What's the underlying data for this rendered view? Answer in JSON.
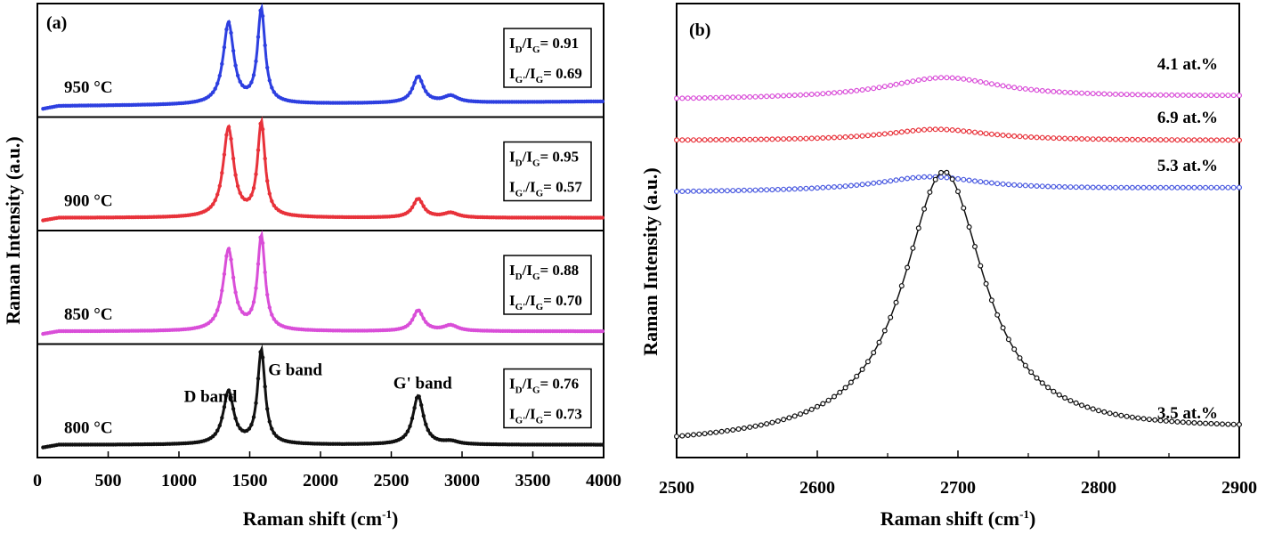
{
  "chart_data": [
    {
      "type": "line",
      "panel_label": "(a)",
      "xlabel": "Raman shift (cm",
      "xlabel_sup": "-1",
      "xlabel_close": ")",
      "ylabel": "Raman Intensity (a.u.)",
      "xlim": [
        0,
        4000
      ],
      "x_ticks": [
        "0",
        "500",
        "1000",
        "1500",
        "2000",
        "2500",
        "3000",
        "3500",
        "4000"
      ],
      "x_tick_values": [
        0,
        500,
        1000,
        1500,
        2000,
        2500,
        3000,
        3500,
        4000
      ],
      "band_labels": [
        {
          "text": "D band",
          "x": 1350
        },
        {
          "text": "G band",
          "x": 1580
        },
        {
          "text": "G' band",
          "x": 2690
        }
      ],
      "series": [
        {
          "name": "950 °C",
          "color": "#2d3fe0",
          "ratio_lines": [
            {
              "num": "I",
              "num_sub": "D",
              "den": "I",
              "den_sub": "G",
              "value": "0.91"
            },
            {
              "num": "I",
              "num_sub": "G'",
              "den": "I",
              "den_sub": "G",
              "value": "0.69"
            }
          ],
          "peaks": [
            [
              0,
              0.0
            ],
            [
              150,
              0.06
            ],
            [
              1000,
              0.08
            ],
            [
              1350,
              0.86
            ],
            [
              1450,
              0.2
            ],
            [
              1580,
              1.0
            ],
            [
              1700,
              0.05
            ],
            [
              2690,
              0.28
            ],
            [
              2900,
              0.14
            ],
            [
              4000,
              0.1
            ]
          ]
        },
        {
          "name": "900 °C",
          "color": "#e8323a",
          "ratio_lines": [
            {
              "num": "I",
              "num_sub": "D",
              "den": "I",
              "den_sub": "G",
              "value": "0.95"
            },
            {
              "num": "I",
              "num_sub": "G'",
              "den": "I",
              "den_sub": "G",
              "value": "0.57"
            }
          ],
          "peaks": [
            [
              0,
              0.0
            ],
            [
              150,
              0.06
            ],
            [
              1000,
              0.08
            ],
            [
              1350,
              0.95
            ],
            [
              1450,
              0.3
            ],
            [
              1580,
              1.0
            ],
            [
              1700,
              0.05
            ],
            [
              2690,
              0.2
            ],
            [
              2900,
              0.1
            ],
            [
              4000,
              0.05
            ]
          ]
        },
        {
          "name": "850 °C",
          "color": "#d94ed8",
          "ratio_lines": [
            {
              "num": "I",
              "num_sub": "D",
              "den": "I",
              "den_sub": "G",
              "value": "0.88"
            },
            {
              "num": "I",
              "num_sub": "G'",
              "den": "I",
              "den_sub": "G",
              "value": "0.70"
            }
          ],
          "peaks": [
            [
              0,
              0.0
            ],
            [
              150,
              0.06
            ],
            [
              1000,
              0.08
            ],
            [
              1350,
              0.86
            ],
            [
              1450,
              0.2
            ],
            [
              1580,
              1.0
            ],
            [
              1700,
              0.05
            ],
            [
              2690,
              0.22
            ],
            [
              2900,
              0.12
            ],
            [
              4000,
              0.07
            ]
          ]
        },
        {
          "name": "800 °C",
          "color": "#111111",
          "ratio_lines": [
            {
              "num": "I",
              "num_sub": "D",
              "den": "I",
              "den_sub": "G",
              "value": "0.76"
            },
            {
              "num": "I",
              "num_sub": "G'",
              "den": "I",
              "den_sub": "G",
              "value": "0.73"
            }
          ],
          "peaks": [
            [
              0,
              0.0
            ],
            [
              150,
              0.03
            ],
            [
              1000,
              0.04
            ],
            [
              1350,
              0.56
            ],
            [
              1450,
              0.05
            ],
            [
              1580,
              1.0
            ],
            [
              1700,
              0.05
            ],
            [
              2690,
              0.52
            ],
            [
              2900,
              0.06
            ],
            [
              4000,
              0.03
            ]
          ]
        }
      ]
    },
    {
      "type": "line",
      "panel_label": "(b)",
      "xlabel": "Raman shift (cm",
      "xlabel_sup": "-1",
      "xlabel_close": ")",
      "ylabel": "Raman Intensity (a.u.)",
      "xlim": [
        2500,
        2900
      ],
      "x_ticks": [
        "2500",
        "2600",
        "2700",
        "2800",
        "2900"
      ],
      "x_tick_values": [
        2500,
        2600,
        2700,
        2800,
        2900
      ],
      "series": [
        {
          "name": "4.1 at.%",
          "color": "#d94ed8",
          "center": 2690,
          "width": 50,
          "height": 0.32,
          "baseline": [
            0.0,
            0.05
          ]
        },
        {
          "name": "6.9 at.%",
          "color": "#e8323a",
          "center": 2685,
          "width": 45,
          "height": 0.06,
          "baseline": [
            0.0,
            0.0
          ]
        },
        {
          "name": "5.3 at.%",
          "color": "#4a5ae0",
          "center": 2680,
          "width": 45,
          "height": 0.16,
          "baseline": [
            0.0,
            0.05
          ]
        },
        {
          "name": "3.5 at.%",
          "color": "#111111",
          "center": 2690,
          "width": 35,
          "height": 1.0,
          "baseline": [
            0.0,
            0.05
          ]
        }
      ]
    }
  ]
}
